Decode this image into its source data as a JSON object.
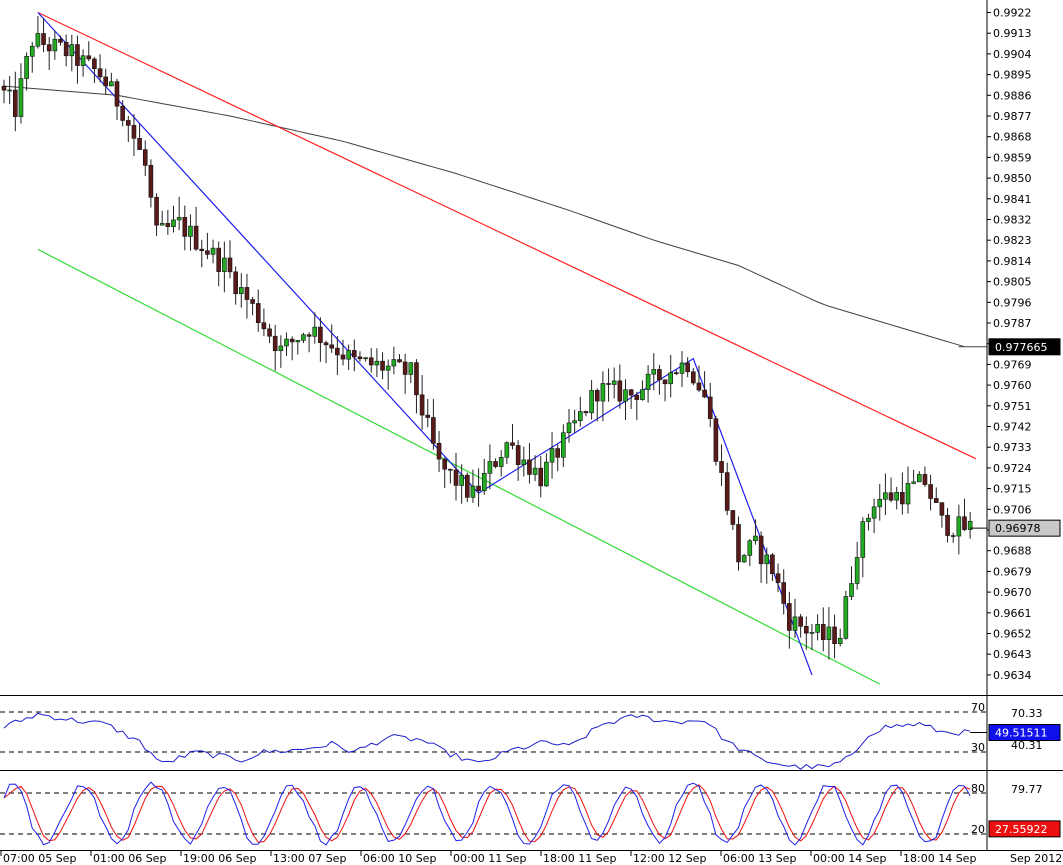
{
  "chart_data": {
    "type": "candlestick",
    "price_axis": {
      "ticks": [
        "0.9922",
        "0.9913",
        "0.9904",
        "0.9895",
        "0.9886",
        "0.9877",
        "0.9868",
        "0.9859",
        "0.9850",
        "0.9841",
        "0.9832",
        "0.9823",
        "0.9814",
        "0.9805",
        "0.9796",
        "0.9787",
        "0.9778",
        "0.9769",
        "0.9760",
        "0.9751",
        "0.9742",
        "0.9733",
        "0.9724",
        "0.9715",
        "0.9706",
        "0.9697",
        "0.9688",
        "0.9679",
        "0.9670",
        "0.9661",
        "0.9652",
        "0.9643",
        "0.9634"
      ],
      "range": [
        0.9627,
        0.9925
      ]
    },
    "time_axis": {
      "labels": [
        "07:00 05 Sep",
        "01:00 06 Sep",
        "19:00 06 Sep",
        "13:00 07 Sep",
        "06:00 10 Sep",
        "00:00 11 Sep",
        "18:00 11 Sep",
        "12:00 12 Sep",
        "06:00 13 Sep",
        "00:00 14 Sep",
        "18:00 14 Sep"
      ],
      "corner_label": "Sep 2012"
    },
    "price_tags": [
      {
        "value": "0.977665",
        "bg": "#000000",
        "fg": "#ffffff"
      },
      {
        "value": "0.96978",
        "bg": "#c8c8c8",
        "fg": "#000000"
      }
    ],
    "price_waypoints": [
      [
        0,
        0.989
      ],
      [
        3,
        0.988
      ],
      [
        6,
        0.991
      ],
      [
        12,
        0.9905
      ],
      [
        18,
        0.9895
      ],
      [
        22,
        0.988
      ],
      [
        26,
        0.9855
      ],
      [
        28,
        0.9825
      ],
      [
        32,
        0.983
      ],
      [
        40,
        0.9812
      ],
      [
        46,
        0.979
      ],
      [
        50,
        0.9775
      ],
      [
        55,
        0.9785
      ],
      [
        63,
        0.977
      ],
      [
        68,
        0.9768
      ],
      [
        73,
        0.9765
      ],
      [
        78,
        0.9725
      ],
      [
        84,
        0.9712
      ],
      [
        90,
        0.9735
      ],
      [
        96,
        0.972
      ],
      [
        100,
        0.9735
      ],
      [
        106,
        0.9758
      ],
      [
        112,
        0.9756
      ],
      [
        118,
        0.9765
      ],
      [
        122,
        0.977
      ],
      [
        125,
        0.9755
      ],
      [
        128,
        0.972
      ],
      [
        131,
        0.9685
      ],
      [
        134,
        0.969
      ],
      [
        137,
        0.968
      ],
      [
        140,
        0.9658
      ],
      [
        146,
        0.965
      ],
      [
        149,
        0.9652
      ],
      [
        152,
        0.969
      ],
      [
        155,
        0.971
      ],
      [
        160,
        0.9713
      ],
      [
        164,
        0.9718
      ],
      [
        167,
        0.97
      ],
      [
        170,
        0.9698
      ]
    ],
    "moving_average": {
      "color": "#404040",
      "points": [
        [
          0,
          0.989
        ],
        [
          20,
          0.9886
        ],
        [
          40,
          0.9877
        ],
        [
          60,
          0.9866
        ],
        [
          80,
          0.9852
        ],
        [
          100,
          0.9836
        ],
        [
          115,
          0.9823
        ],
        [
          130,
          0.9812
        ],
        [
          145,
          0.9795
        ],
        [
          160,
          0.9784
        ],
        [
          170,
          0.97767
        ]
      ]
    },
    "trend_lines": [
      {
        "name": "resistance",
        "color": "#ff2020",
        "points": [
          [
            6,
            0.9922
          ],
          [
            172,
            0.9728
          ]
        ]
      },
      {
        "name": "support",
        "color": "#33dd33",
        "points": [
          [
            6,
            0.9819
          ],
          [
            155,
            0.963
          ]
        ]
      },
      {
        "name": "zigzag",
        "color": "#2020ee",
        "points": [
          [
            6,
            0.9922
          ],
          [
            84,
            0.9713
          ],
          [
            122,
            0.97715
          ],
          [
            143,
            0.9634
          ]
        ]
      }
    ],
    "rsi": {
      "levels": [
        "70",
        "30"
      ],
      "right_labels": [
        "70.33",
        "40.31"
      ],
      "current": "49.51511",
      "color": "#2020cc",
      "current_bg": "#1010ee",
      "waypoints": [
        [
          0,
          55
        ],
        [
          6,
          68
        ],
        [
          12,
          62
        ],
        [
          18,
          58
        ],
        [
          24,
          40
        ],
        [
          28,
          18
        ],
        [
          34,
          30
        ],
        [
          42,
          22
        ],
        [
          46,
          30
        ],
        [
          52,
          32
        ],
        [
          58,
          38
        ],
        [
          62,
          30
        ],
        [
          68,
          45
        ],
        [
          74,
          42
        ],
        [
          78,
          30
        ],
        [
          84,
          18
        ],
        [
          90,
          32
        ],
        [
          96,
          40
        ],
        [
          100,
          35
        ],
        [
          106,
          58
        ],
        [
          112,
          66
        ],
        [
          118,
          60
        ],
        [
          124,
          62
        ],
        [
          128,
          40
        ],
        [
          134,
          22
        ],
        [
          140,
          15
        ],
        [
          146,
          15
        ],
        [
          150,
          25
        ],
        [
          153,
          48
        ],
        [
          156,
          55
        ],
        [
          162,
          58
        ],
        [
          166,
          50
        ],
        [
          170,
          49.5
        ]
      ]
    },
    "stochastic": {
      "levels": [
        "80",
        "20"
      ],
      "right_labels": [
        "79.77"
      ],
      "current": "27.55922",
      "main_color": "#2020ee",
      "signal_color": "#ee1010",
      "current_bg": "#ee1010"
    }
  }
}
